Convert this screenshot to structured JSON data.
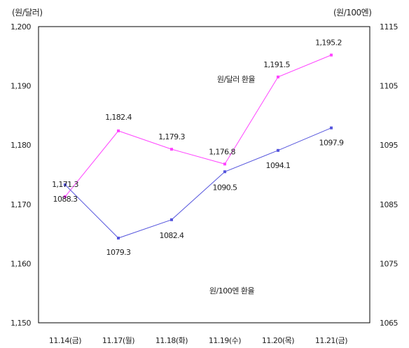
{
  "chart_data": {
    "type": "line",
    "categories": [
      "11.14(금)",
      "11.17(월)",
      "11.18(화)",
      "11.19(수)",
      "11.20(목)",
      "11.21(금)"
    ],
    "left_axis": {
      "unit_label": "(원/달러)",
      "min": 1150,
      "max": 1200,
      "ticks": [
        1150,
        1160,
        1170,
        1180,
        1190,
        1200
      ],
      "tick_labels": [
        "1,150",
        "1,160",
        "1,170",
        "1,180",
        "1,190",
        "1,200"
      ]
    },
    "right_axis": {
      "unit_label": "(원/100엔)",
      "min": 1065,
      "max": 1115,
      "ticks": [
        1065,
        1075,
        1085,
        1095,
        1105,
        1115
      ],
      "tick_labels": [
        "1065",
        "1075",
        "1085",
        "1095",
        "1105",
        "1115"
      ]
    },
    "series": [
      {
        "name": "원/달러 환율",
        "axis": "left",
        "color": "#ff44ff",
        "values": [
          1171.3,
          1182.4,
          1179.3,
          1176.8,
          1191.5,
          1195.2
        ],
        "labels": [
          "1,171.3",
          "1,182.4",
          "1,179.3",
          "1,176.8",
          "1,191.5",
          "1,195.2"
        ]
      },
      {
        "name": "원/100엔 환율",
        "axis": "right",
        "color": "#5555dd",
        "values": [
          1088.3,
          1079.3,
          1082.4,
          1090.5,
          1094.1,
          1097.9
        ],
        "labels": [
          "1088.3",
          "1079.3",
          "1082.4",
          "1090.5",
          "1094.1",
          "1097.9"
        ]
      }
    ],
    "grid": false,
    "legend": "inline"
  }
}
